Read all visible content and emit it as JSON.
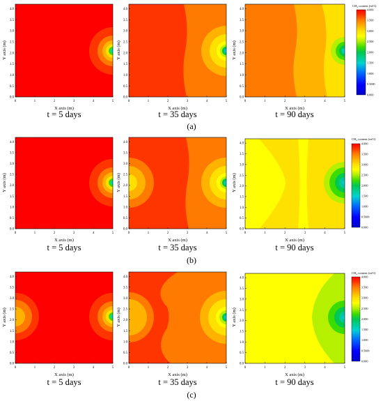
{
  "figure": {
    "row_labels": [
      "(a)",
      "(b)",
      "(c)"
    ],
    "colorbar": {
      "title": "CH₄ content (m³/t)",
      "ticks": [
        "4.000",
        "3.500",
        "3.000",
        "2.500",
        "2.000",
        "1.500",
        "1.000",
        "0.5000",
        "0.000"
      ]
    },
    "colors": {
      "c4_0": "#ff0000",
      "c3_75": "#ff3500",
      "c3_5": "#ff7a00",
      "c3_25": "#ffb200",
      "c3_0": "#ffe100",
      "c2_75": "#ffff00",
      "c2_5": "#b4f000",
      "c2_25": "#3cdc00",
      "c2_0": "#00c850",
      "c1_5": "#00d2d2",
      "c1_0": "#0064ff",
      "c0_5": "#0000ff",
      "c0_0": "#0000c8"
    }
  },
  "chart_data": [
    {
      "type": "heatmap",
      "row": "(a)",
      "time_label": "t = 5 days",
      "xlabel": "X axis (m)",
      "ylabel": "Y axis (m)",
      "xlim": [
        0,
        5
      ],
      "ylim": [
        0,
        4.2
      ],
      "x_ticks": [
        "0",
        "1",
        "2",
        "3",
        "4",
        "5"
      ],
      "y_ticks": [
        "0.0",
        "0.5",
        "1.0",
        "1.5",
        "2.0",
        "2.5",
        "3.0",
        "3.5",
        "4.0"
      ],
      "colorbar_range": [
        0,
        4
      ],
      "sources": [
        {
          "x": 5,
          "y": 2.15
        }
      ]
    },
    {
      "type": "heatmap",
      "row": "(a)",
      "time_label": "t = 35 days",
      "xlabel": "X axis (m)",
      "ylabel": "Y axis (m)",
      "xlim": [
        0,
        5
      ],
      "ylim": [
        0,
        4.2
      ],
      "x_ticks": [
        "0",
        "1",
        "2",
        "3",
        "4",
        "5"
      ],
      "y_ticks": [
        "0.0",
        "0.5",
        "1.0",
        "1.5",
        "2.0",
        "2.5",
        "3.0",
        "3.5",
        "4.0"
      ],
      "colorbar_range": [
        0,
        4
      ],
      "sources": [
        {
          "x": 5,
          "y": 2.15
        }
      ]
    },
    {
      "type": "heatmap",
      "row": "(a)",
      "time_label": "t = 90 days",
      "xlabel": "X axis (m)",
      "ylabel": "Y axis (m)",
      "xlim": [
        0,
        5
      ],
      "ylim": [
        0,
        4.2
      ],
      "x_ticks": [
        "0",
        "1",
        "2",
        "3",
        "4",
        "5"
      ],
      "y_ticks": [
        "0.0",
        "0.5",
        "1.0",
        "1.5",
        "2.0",
        "2.5",
        "3.0",
        "3.5",
        "4.0"
      ],
      "colorbar_range": [
        0,
        4
      ],
      "sources": [
        {
          "x": 5,
          "y": 2.15
        }
      ]
    },
    {
      "type": "heatmap",
      "row": "(b)",
      "time_label": "t = 5 days",
      "xlabel": "X axis (m)",
      "ylabel": "Y axis (m)",
      "xlim": [
        0,
        5
      ],
      "ylim": [
        0,
        4.2
      ],
      "x_ticks": [
        "0",
        "1",
        "2",
        "3",
        "4",
        "5"
      ],
      "y_ticks": [
        "0.0",
        "0.5",
        "1.0",
        "1.5",
        "2.0",
        "2.5",
        "3.0",
        "3.5",
        "4.0"
      ],
      "colorbar_range": [
        0,
        4
      ],
      "sources": [
        {
          "x": 5,
          "y": 2.15
        }
      ]
    },
    {
      "type": "heatmap",
      "row": "(b)",
      "time_label": "t = 35 days",
      "xlabel": "X axis (m)",
      "ylabel": "Y axis (m)",
      "xlim": [
        0,
        5
      ],
      "ylim": [
        0,
        4.2
      ],
      "x_ticks": [
        "0",
        "1",
        "2",
        "3",
        "4",
        "5"
      ],
      "y_ticks": [
        "0.0",
        "0.5",
        "1.0",
        "1.5",
        "2.0",
        "2.5",
        "3.0",
        "3.5",
        "4.0"
      ],
      "colorbar_range": [
        0,
        4
      ],
      "sources": [
        {
          "x": 0,
          "y": 2.15
        },
        {
          "x": 5,
          "y": 2.15
        }
      ]
    },
    {
      "type": "heatmap",
      "row": "(b)",
      "time_label": "t = 90 days",
      "xlabel": "X axis (m)",
      "ylabel": "Y axis (m)",
      "xlim": [
        0,
        5
      ],
      "ylim": [
        0,
        4.2
      ],
      "x_ticks": [
        "0",
        "1",
        "2",
        "3",
        "4",
        "5"
      ],
      "y_ticks": [
        "0.0",
        "0.5",
        "1.0",
        "1.5",
        "2.0",
        "2.5",
        "3.0",
        "3.5",
        "4.0"
      ],
      "colorbar_range": [
        0,
        4
      ],
      "sources": [
        {
          "x": 5,
          "y": 2.15
        }
      ]
    },
    {
      "type": "heatmap",
      "row": "(c)",
      "time_label": "t = 5 days",
      "xlabel": "X axis (m)",
      "ylabel": "Y axis (m)",
      "xlim": [
        0,
        5
      ],
      "ylim": [
        0,
        4.2
      ],
      "x_ticks": [
        "0",
        "1",
        "2",
        "3",
        "4",
        "5"
      ],
      "y_ticks": [
        "0.0",
        "0.5",
        "1.0",
        "1.5",
        "2.0",
        "2.5",
        "3.0",
        "3.5",
        "4.0"
      ],
      "colorbar_range": [
        0,
        4
      ],
      "sources": [
        {
          "x": 0,
          "y": 2.15
        },
        {
          "x": 5,
          "y": 2.15
        }
      ]
    },
    {
      "type": "heatmap",
      "row": "(c)",
      "time_label": "t = 35 days",
      "xlabel": "X axis (m)",
      "ylabel": "Y axis (m)",
      "xlim": [
        0,
        5
      ],
      "ylim": [
        0,
        4.2
      ],
      "x_ticks": [
        "0",
        "1",
        "2",
        "3",
        "4",
        "5"
      ],
      "y_ticks": [
        "0.0",
        "0.5",
        "1.0",
        "1.5",
        "2.0",
        "2.5",
        "3.0",
        "3.5",
        "4.0"
      ],
      "colorbar_range": [
        0,
        4
      ],
      "sources": [
        {
          "x": 0,
          "y": 2.15
        },
        {
          "x": 5,
          "y": 2.15
        }
      ]
    },
    {
      "type": "heatmap",
      "row": "(c)",
      "time_label": "t = 90 days",
      "xlabel": "X axis (m)",
      "ylabel": "Y axis (m)",
      "xlim": [
        0,
        5
      ],
      "ylim": [
        0,
        4.2
      ],
      "x_ticks": [
        "0",
        "1",
        "2",
        "3",
        "4",
        "5"
      ],
      "y_ticks": [
        "0.0",
        "0.5",
        "1.0",
        "1.5",
        "2.0",
        "2.5",
        "3.0",
        "3.5",
        "4.0"
      ],
      "colorbar_range": [
        0,
        4
      ],
      "sources": [
        {
          "x": 5,
          "y": 2.15
        }
      ]
    }
  ]
}
